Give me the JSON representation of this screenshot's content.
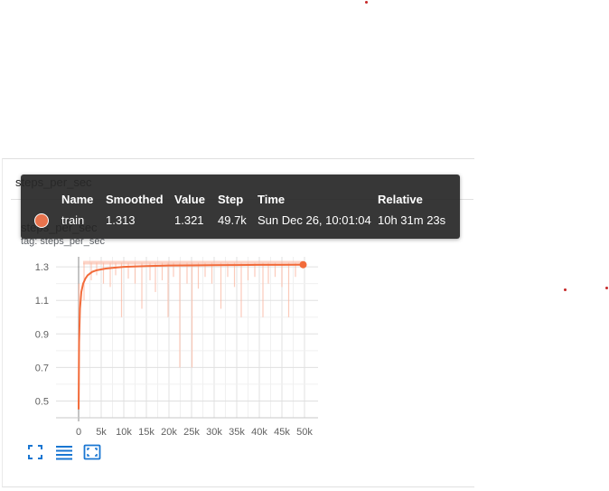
{
  "group": {
    "title": "steps_per_sec"
  },
  "chart": {
    "title": "steps_per_sec",
    "tag": "tag: steps_per_sec"
  },
  "tooltip": {
    "headers": {
      "name": "Name",
      "smoothed": "Smoothed",
      "value": "Value",
      "step": "Step",
      "time": "Time",
      "relative": "Relative"
    },
    "row": {
      "name": "train",
      "smoothed": "1.313",
      "value": "1.321",
      "step": "49.7k",
      "time": "Sun Dec 26, 10:01:04",
      "relative": "10h 31m 23s",
      "color": "#e8734d"
    }
  },
  "toolbar": {
    "fit_icon": "fullscreen-icon",
    "list_icon": "data-list-icon",
    "zoom_icon": "fit-domain-icon",
    "icon_color": "#1976d2"
  },
  "colors": {
    "smoothed": "#f26b3a",
    "raw": "#fbb9a3",
    "grid": "#e0e0e0",
    "axis": "#888888"
  },
  "chart_data": {
    "type": "line",
    "title": "steps_per_sec",
    "xlim": [
      -5000,
      53000
    ],
    "ylim": [
      0.4,
      1.36
    ],
    "xticks": [
      0,
      5000,
      10000,
      15000,
      20000,
      25000,
      30000,
      35000,
      40000,
      45000,
      50000
    ],
    "xtick_labels": [
      "0",
      "5k",
      "10k",
      "15k",
      "20k",
      "25k",
      "30k",
      "35k",
      "40k",
      "45k",
      "50k"
    ],
    "yticks": [
      0.5,
      0.7,
      0.9,
      1.1,
      1.3
    ],
    "ytick_labels": [
      "0.5",
      "0.7",
      "0.9",
      "1.1",
      "1.3"
    ],
    "grid": true,
    "series": [
      {
        "name": "train",
        "smoothed": {
          "x": [
            0,
            100,
            300,
            600,
            1000,
            1500,
            2000,
            3000,
            4000,
            6000,
            8000,
            10000,
            15000,
            20000,
            25000,
            30000,
            35000,
            40000,
            45000,
            49700
          ],
          "y": [
            0.45,
            0.85,
            1.05,
            1.15,
            1.2,
            1.23,
            1.25,
            1.27,
            1.28,
            1.29,
            1.295,
            1.3,
            1.305,
            1.308,
            1.309,
            1.31,
            1.311,
            1.312,
            1.312,
            1.313
          ]
        },
        "raw_dips": {
          "x": [
            1200,
            2800,
            4000,
            5500,
            7000,
            8200,
            9500,
            11000,
            12500,
            14000,
            15800,
            17000,
            18500,
            19800,
            21000,
            22400,
            24000,
            25100,
            26500,
            28000,
            29500,
            31500,
            33000,
            34500,
            36000,
            37500,
            39000,
            40800,
            42000,
            43500,
            45000,
            46500,
            48000
          ],
          "y": [
            1.1,
            1.22,
            1.25,
            1.2,
            1.18,
            1.25,
            1.0,
            1.23,
            1.2,
            1.05,
            1.22,
            1.15,
            1.22,
            1.0,
            1.24,
            0.7,
            1.2,
            0.7,
            1.17,
            1.24,
            1.2,
            1.05,
            1.24,
            1.18,
            1.0,
            1.22,
            1.24,
            1.0,
            1.2,
            1.24,
            1.18,
            1.0,
            1.24
          ]
        },
        "last_point": {
          "x": 49700,
          "y": 1.313
        }
      }
    ]
  }
}
